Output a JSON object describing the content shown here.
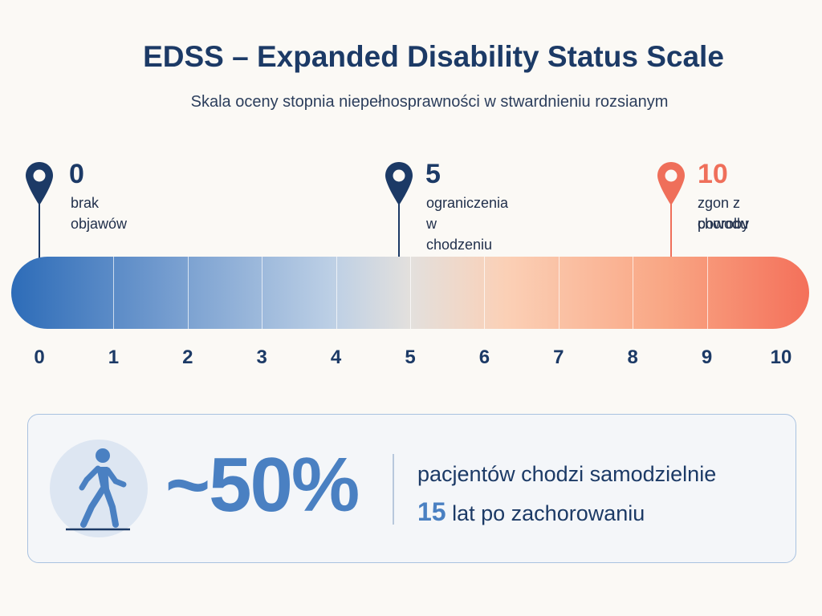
{
  "header": {
    "title": "EDSS – Expanded Disability Status Scale",
    "subtitle": "Skala oceny stopnia niepełnosprawności w stwardnieniu rozsianym"
  },
  "scale": {
    "min": 0,
    "max": 10,
    "ticks": [
      "0",
      "1",
      "2",
      "3",
      "4",
      "5",
      "6",
      "7",
      "8",
      "9",
      "10"
    ],
    "gradient_start_color": "#2d6cb8",
    "gradient_mid_color": "#e3e0dd",
    "gradient_end_color": "#f4705a"
  },
  "markers": [
    {
      "value": "0",
      "label_line1": "brak objawów",
      "label_line2": "",
      "color": "#1c3a66",
      "icon": "map-pin-icon"
    },
    {
      "value": "5",
      "label_line1": "ograniczenia",
      "label_line2": "w chodzeniu",
      "color": "#1c3a66",
      "icon": "map-pin-icon"
    },
    {
      "value": "10",
      "label_line1": "zgon z powodu",
      "label_line2": "choroby",
      "color": "#ef6f5a",
      "icon": "map-pin-icon"
    }
  ],
  "stat": {
    "icon": "walking-person-icon",
    "value": "~50%",
    "line1": "pacjentów chodzi samodzielnie",
    "line2_number": "15",
    "line2_text": "lat po zachorowaniu",
    "accent_color": "#4a80c2"
  }
}
